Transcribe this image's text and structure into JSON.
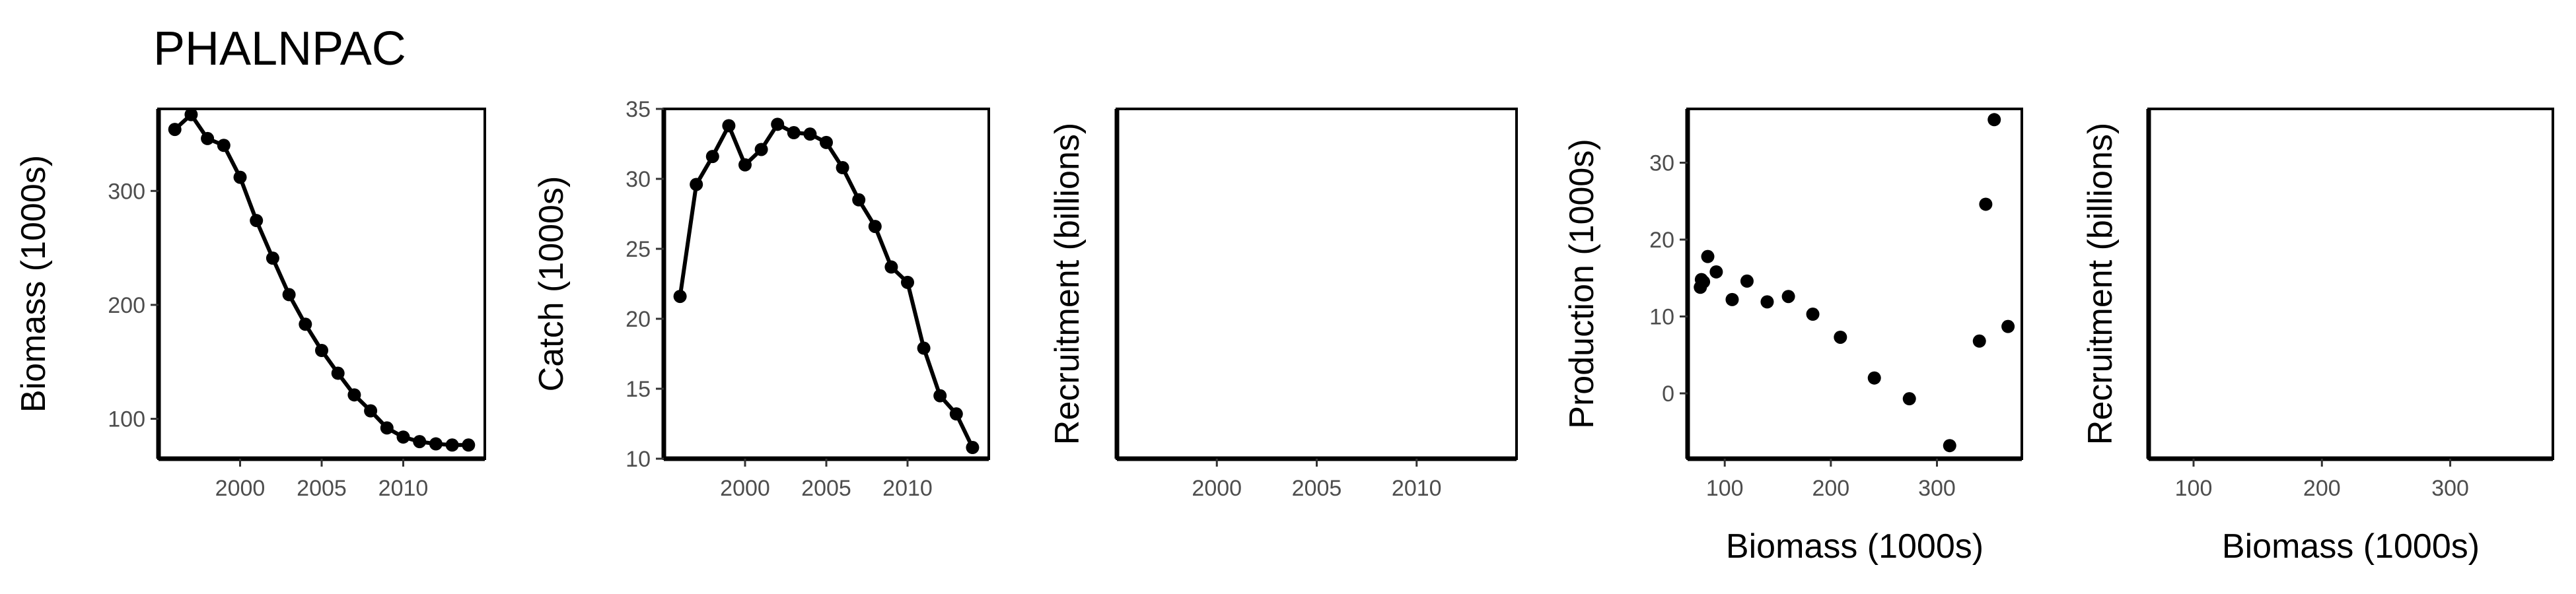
{
  "figure": {
    "title": "PHALNPAC"
  },
  "chart_data": [
    {
      "type": "line",
      "xlabel": "",
      "ylabel": "Biomass (1000s)",
      "xlim": [
        1995,
        2015
      ],
      "ylim": [
        65,
        372
      ],
      "xticks": [
        2000,
        2005,
        2010
      ],
      "yticks": [
        100,
        200,
        300
      ],
      "x": [
        1996,
        1997,
        1998,
        1999,
        2000,
        2001,
        2002,
        2003,
        2004,
        2005,
        2006,
        2007,
        2008,
        2009,
        2010,
        2011,
        2012,
        2013,
        2014
      ],
      "values": [
        354,
        367,
        346,
        340,
        312,
        274,
        241,
        209,
        183,
        160,
        140,
        121,
        107,
        92,
        84,
        80,
        78,
        77,
        77
      ]
    },
    {
      "type": "line",
      "xlabel": "",
      "ylabel": "Catch (1000s)",
      "xlim": [
        1995,
        2015
      ],
      "ylim": [
        10,
        35
      ],
      "xticks": [
        2000,
        2005,
        2010
      ],
      "yticks": [
        10,
        15,
        20,
        25,
        30,
        35
      ],
      "x": [
        1996,
        1997,
        1998,
        1999,
        2000,
        2001,
        2002,
        2003,
        2004,
        2005,
        2006,
        2007,
        2008,
        2009,
        2010,
        2011,
        2012,
        2013,
        2014
      ],
      "values": [
        21.6,
        29.6,
        31.6,
        33.8,
        31.0,
        32.1,
        33.9,
        33.3,
        33.2,
        32.6,
        30.8,
        28.5,
        26.6,
        23.7,
        22.6,
        17.9,
        14.5,
        13.2,
        10.8
      ]
    },
    {
      "type": "line",
      "xlabel": "",
      "ylabel": "Recruitment (billions)",
      "xlim": [
        1995,
        2015
      ],
      "ylim": [
        0,
        1
      ],
      "xticks": [
        2000,
        2005,
        2010
      ],
      "yticks": [],
      "x": [],
      "values": []
    },
    {
      "type": "scatter",
      "xlabel": "Biomass (1000s)",
      "ylabel": "Production (1000s)",
      "xlim": [
        65,
        380
      ],
      "ylim": [
        -8.5,
        37
      ],
      "xticks": [
        100,
        200,
        300
      ],
      "yticks": [
        0,
        10,
        20,
        30
      ],
      "x": [
        77,
        78,
        80,
        84,
        92,
        107,
        121,
        140,
        160,
        183,
        209,
        241,
        274,
        312,
        340,
        346,
        354,
        367
      ],
      "values": [
        13.8,
        14.8,
        14.5,
        17.8,
        15.8,
        12.2,
        14.6,
        11.9,
        12.6,
        10.3,
        7.3,
        2.0,
        -0.7,
        -6.8,
        6.8,
        24.6,
        35.6,
        8.7
      ]
    },
    {
      "type": "scatter",
      "xlabel": "Biomass (1000s)",
      "ylabel": "Recruitment (billions)",
      "xlim": [
        65,
        380
      ],
      "ylim": [
        0,
        1
      ],
      "xticks": [
        100,
        200,
        300
      ],
      "yticks": [],
      "x": [],
      "values": []
    }
  ]
}
